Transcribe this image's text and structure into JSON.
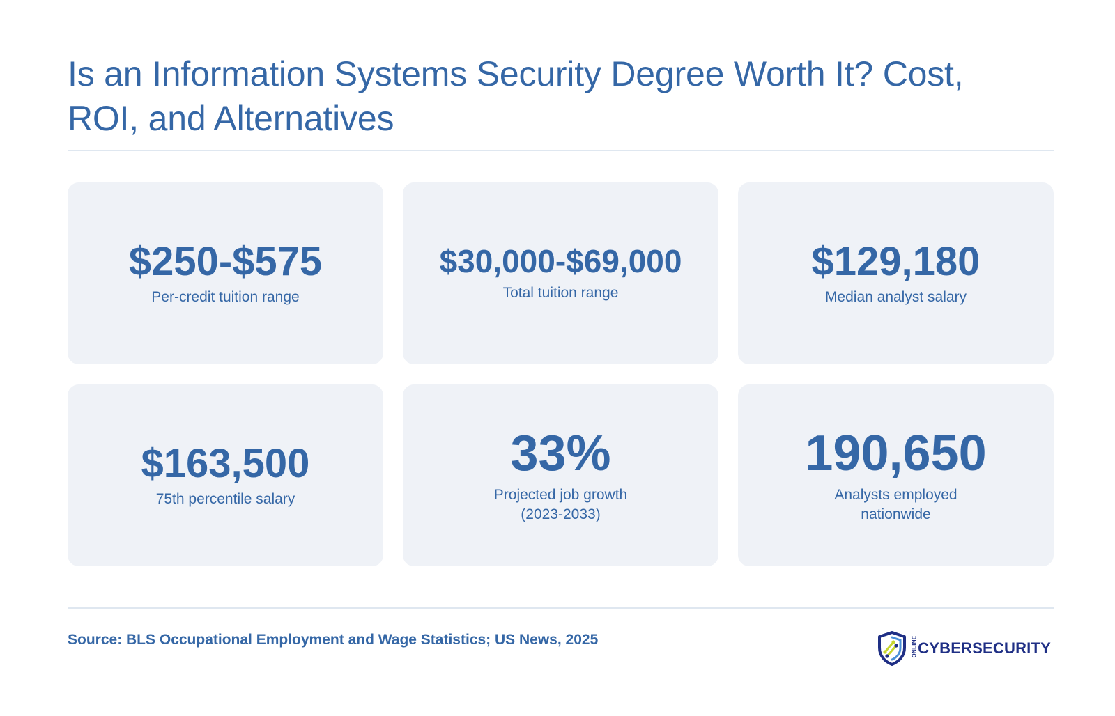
{
  "header": {
    "title": "Is an Information Systems Security Degree Worth It? Cost, ROI, and Alternatives"
  },
  "stats": [
    {
      "value": "$250-$575",
      "label": "Per-credit tuition range"
    },
    {
      "value": "$30,000-$69,000",
      "label": "Total tuition range"
    },
    {
      "value": "$129,180",
      "label": "Median analyst salary"
    },
    {
      "value": "$163,500",
      "label": "75th percentile salary"
    },
    {
      "value": "33%",
      "label": "Projected job growth (2023-2033)"
    },
    {
      "value": "190,650",
      "label": "Analysts employed nationwide"
    }
  ],
  "footer": {
    "source": "Source: BLS Occupational Employment and Wage Statistics; US News, 2025"
  },
  "logo": {
    "prefix": "ONLINE",
    "wordmark": "CYBERSECURITY",
    "icon": "shield-icon",
    "colors": {
      "primary": "#1f2f85",
      "accent": "#c7d62f",
      "secondary": "#4a90d9"
    }
  },
  "colors": {
    "accent_text": "#3567a6",
    "card_background": "#eff2f7",
    "rule": "#dfe7f0"
  }
}
